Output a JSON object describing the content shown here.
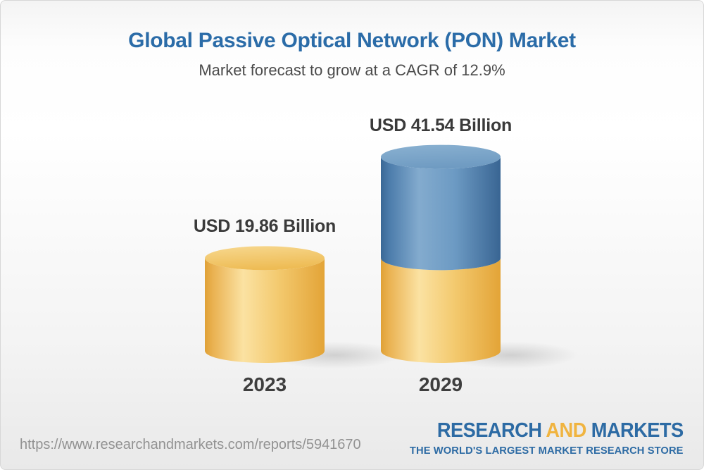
{
  "header": {
    "title": "Global Passive Optical Network (PON) Market",
    "subtitle": "Market forecast to grow at a CAGR of 12.9%"
  },
  "chart_data": {
    "type": "bar",
    "variant": "3d-cylinder-stacked",
    "categories": [
      "2023",
      "2029"
    ],
    "values": [
      19.86,
      41.54
    ],
    "value_labels": [
      "USD 19.86 Billion",
      "USD 41.54 Billion"
    ],
    "unit": "USD Billion",
    "cagr_percent": 12.9,
    "ylim": [
      0,
      45
    ],
    "grid": "none",
    "legend": "none",
    "colors": {
      "base_segment_gold": "#F0C265",
      "growth_segment_blue": "#5D8DBA",
      "title_blue": "#2B6CA8",
      "label_gray": "#3A3A3A"
    },
    "notes": "2029 cylinder repeats the 2023 base value in gold with the forecast growth portion stacked in blue on top"
  },
  "footer": {
    "url": "https://www.researchandmarkets.com/reports/5941670",
    "logo": {
      "research": "RESEARCH",
      "and": "AND",
      "markets": "MARKETS",
      "tagline": "THE WORLD'S LARGEST MARKET RESEARCH STORE"
    }
  }
}
